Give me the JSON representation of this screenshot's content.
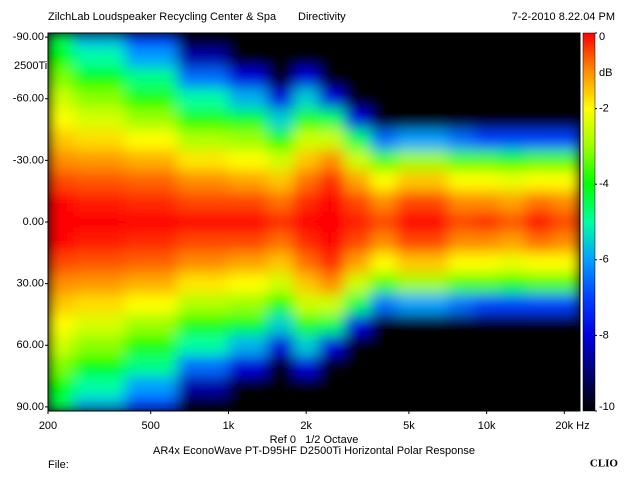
{
  "chart_data": {
    "type": "heatmap",
    "title": "Directivity",
    "header_left": "ZilchLab Loudspeaker Recycling Center & Spa",
    "header_right": "7-2-2010 8.22.04 PM",
    "annotation": "2500Ti",
    "x_note": "Ref 0   1/2 Octave",
    "subtitle": "AR4x EconoWave PT-D95HF D2500Ti Horizontal Polar Response",
    "footer_left": "File:",
    "footer_right": "CLIO",
    "log_x": true,
    "x": [
      200,
      315,
      500,
      800,
      1250,
      1600,
      2000,
      2500,
      3150,
      4000,
      5000,
      6300,
      8000,
      10000,
      12500,
      16000,
      20000
    ],
    "y": [
      -90,
      -80,
      -70,
      -60,
      -50,
      -40,
      -30,
      -20,
      -10,
      0,
      10,
      20,
      30,
      40,
      50,
      60,
      70,
      80,
      90
    ],
    "z": [
      [
        -4.5,
        -5.8,
        -7,
        -10,
        -10,
        -10,
        -10,
        -10,
        -10,
        -10,
        -10,
        -10,
        -10,
        -10,
        -10,
        -10,
        -10
      ],
      [
        -4,
        -5,
        -6,
        -8.5,
        -10,
        -10,
        -10,
        -10,
        -10,
        -10,
        -10,
        -10,
        -10,
        -10,
        -10,
        -10,
        -10
      ],
      [
        -3.2,
        -4,
        -4.8,
        -6.5,
        -8,
        -10,
        -8,
        -10,
        -10,
        -10,
        -10,
        -10,
        -10,
        -10,
        -10,
        -10,
        -10
      ],
      [
        -2.5,
        -3.1,
        -3.8,
        -5,
        -5.8,
        -8,
        -5.5,
        -8,
        -10,
        -10,
        -10,
        -10,
        -10,
        -10,
        -10,
        -10,
        -10
      ],
      [
        -2,
        -2.4,
        -3,
        -3.8,
        -4.2,
        -5.5,
        -3.8,
        -4.5,
        -8,
        -10,
        -10,
        -10,
        -10,
        -10,
        -10,
        -10,
        -10
      ],
      [
        -1.5,
        -1.7,
        -2,
        -2.8,
        -3,
        -3.8,
        -2.5,
        -2.5,
        -4.5,
        -6.5,
        -6,
        -6,
        -6.5,
        -7,
        -7,
        -7,
        -7
      ],
      [
        -1,
        -1.1,
        -1.3,
        -1.8,
        -2,
        -2.5,
        -1.5,
        -1,
        -2.5,
        -3.5,
        -3,
        -3,
        -3.5,
        -3.5,
        -3.8,
        -3.5,
        -3.5
      ],
      [
        -0.5,
        -0.6,
        -0.7,
        -1,
        -1.2,
        -1.5,
        -0.8,
        -0.3,
        -1.2,
        -2,
        -1.5,
        -1.5,
        -2,
        -2,
        -2.2,
        -2,
        -2
      ],
      [
        0,
        -0.2,
        -0.3,
        -0.5,
        -0.5,
        -0.8,
        -0.3,
        0,
        -0.5,
        -1,
        -0.5,
        -0.5,
        -1,
        -1,
        -1.2,
        -0.8,
        -1
      ],
      [
        0,
        0,
        0,
        0,
        0,
        -0.3,
        0,
        0,
        -0.2,
        -0.5,
        0,
        0,
        -0.5,
        -0.3,
        -0.6,
        0,
        -0.5
      ],
      [
        0,
        -0.2,
        -0.3,
        -0.5,
        -0.5,
        -0.8,
        -0.3,
        0,
        -0.5,
        -1,
        -0.5,
        -0.5,
        -1,
        -1,
        -1.2,
        -0.8,
        -1
      ],
      [
        -0.5,
        -0.6,
        -0.7,
        -1,
        -1.2,
        -1.5,
        -0.8,
        -0.3,
        -1.2,
        -2,
        -1.5,
        -1.5,
        -2,
        -2,
        -2.2,
        -2,
        -2
      ],
      [
        -1,
        -1.1,
        -1.3,
        -1.8,
        -2,
        -2.5,
        -1.5,
        -1,
        -2.5,
        -3.5,
        -3,
        -3,
        -3.5,
        -3.5,
        -3.8,
        -3.5,
        -3.5
      ],
      [
        -1.5,
        -1.7,
        -2,
        -2.8,
        -3,
        -3.8,
        -2.5,
        -2.5,
        -4.5,
        -6.5,
        -6,
        -6,
        -6.5,
        -7,
        -7,
        -7,
        -7
      ],
      [
        -2,
        -2.4,
        -3,
        -3.8,
        -4.2,
        -5.5,
        -3.8,
        -4.5,
        -8,
        -10,
        -10,
        -10,
        -10,
        -10,
        -10,
        -10,
        -10
      ],
      [
        -2.5,
        -3.1,
        -3.8,
        -5,
        -5.8,
        -8,
        -5.5,
        -8,
        -10,
        -10,
        -10,
        -10,
        -10,
        -10,
        -10,
        -10,
        -10
      ],
      [
        -3.2,
        -4,
        -4.8,
        -6.5,
        -8,
        -10,
        -8,
        -10,
        -10,
        -10,
        -10,
        -10,
        -10,
        -10,
        -10,
        -10,
        -10
      ],
      [
        -4,
        -5,
        -6,
        -8.5,
        -10,
        -10,
        -10,
        -10,
        -10,
        -10,
        -10,
        -10,
        -10,
        -10,
        -10,
        -10,
        -10
      ],
      [
        -4.5,
        -5.8,
        -7,
        -10,
        -10,
        -10,
        -10,
        -10,
        -10,
        -10,
        -10,
        -10,
        -10,
        -10,
        -10,
        -10,
        -10
      ]
    ],
    "xlim": [
      200,
      23000
    ],
    "ylim": [
      -92,
      92
    ],
    "xticks": [
      200,
      500,
      {
        "value": 1000,
        "label": "1k"
      },
      {
        "value": 2000,
        "label": "2k"
      },
      {
        "value": 5000,
        "label": "5k"
      },
      {
        "value": 10000,
        "label": "10k"
      },
      {
        "value": 20000,
        "label": "20k Hz"
      }
    ],
    "yticks": [
      {
        "value": -90,
        "label": "-90.00"
      },
      {
        "value": -60,
        "label": "-60.00"
      },
      {
        "value": -30,
        "label": "-30.00"
      },
      {
        "value": 0,
        "label": "0.00"
      },
      {
        "value": 30,
        "label": "30.00"
      },
      {
        "value": 60,
        "label": "60.00"
      },
      {
        "value": 90,
        "label": "90.00"
      }
    ],
    "colorbar": {
      "label": "dB",
      "clim": [
        -10,
        0
      ],
      "ticks": [
        0,
        -2,
        -4,
        -6,
        -8,
        -10
      ]
    },
    "colorscale": [
      {
        "value": 0,
        "color": "#ff0000"
      },
      {
        "value": -1,
        "color": "#ff8c00"
      },
      {
        "value": -2,
        "color": "#ffff00"
      },
      {
        "value": -3,
        "color": "#9cff00"
      },
      {
        "value": -4,
        "color": "#00ff00"
      },
      {
        "value": -5,
        "color": "#00ffa0"
      },
      {
        "value": -6,
        "color": "#00a0ff"
      },
      {
        "value": -7,
        "color": "#0040ff"
      },
      {
        "value": -8,
        "color": "#0000e0"
      },
      {
        "value": -9,
        "color": "#000070"
      },
      {
        "value": -10,
        "color": "#000000"
      }
    ]
  }
}
